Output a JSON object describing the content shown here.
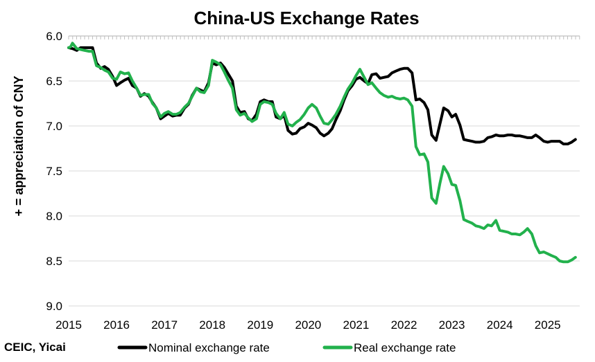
{
  "chart_data": {
    "type": "line",
    "title": "China-US Exchange Rates",
    "ylabel": "+ = appreciation of CNY",
    "xlabel": "",
    "source": "CEIC, Yicai",
    "y_inverted": true,
    "ylim": [
      6.0,
      9.0
    ],
    "xlim": [
      2015.0,
      2025.67
    ],
    "y_ticks": [
      "6.0",
      "6.5",
      "7.0",
      "7.5",
      "8.0",
      "8.5",
      "9.0"
    ],
    "x_ticks": [
      "2015",
      "2016",
      "2017",
      "2018",
      "2019",
      "2020",
      "2021",
      "2022",
      "2023",
      "2024",
      "2025"
    ],
    "grid": "horizontal",
    "legend_position": "bottom",
    "series": [
      {
        "name": "Nominal exchange rate",
        "color": "#000000",
        "points": [
          [
            2015.0,
            6.13
          ],
          [
            2015.08,
            6.14
          ],
          [
            2015.17,
            6.16
          ],
          [
            2015.25,
            6.13
          ],
          [
            2015.33,
            6.13
          ],
          [
            2015.42,
            6.13
          ],
          [
            2015.5,
            6.13
          ],
          [
            2015.58,
            6.3
          ],
          [
            2015.67,
            6.36
          ],
          [
            2015.75,
            6.34
          ],
          [
            2015.83,
            6.37
          ],
          [
            2015.92,
            6.45
          ],
          [
            2016.0,
            6.55
          ],
          [
            2016.08,
            6.52
          ],
          [
            2016.17,
            6.49
          ],
          [
            2016.25,
            6.47
          ],
          [
            2016.33,
            6.55
          ],
          [
            2016.42,
            6.58
          ],
          [
            2016.5,
            6.67
          ],
          [
            2016.58,
            6.64
          ],
          [
            2016.67,
            6.67
          ],
          [
            2016.75,
            6.74
          ],
          [
            2016.83,
            6.8
          ],
          [
            2016.92,
            6.92
          ],
          [
            2017.0,
            6.89
          ],
          [
            2017.08,
            6.86
          ],
          [
            2017.17,
            6.89
          ],
          [
            2017.25,
            6.88
          ],
          [
            2017.33,
            6.88
          ],
          [
            2017.42,
            6.8
          ],
          [
            2017.5,
            6.76
          ],
          [
            2017.58,
            6.66
          ],
          [
            2017.67,
            6.58
          ],
          [
            2017.75,
            6.6
          ],
          [
            2017.83,
            6.62
          ],
          [
            2017.92,
            6.52
          ],
          [
            2018.0,
            6.3
          ],
          [
            2018.08,
            6.32
          ],
          [
            2018.17,
            6.3
          ],
          [
            2018.25,
            6.35
          ],
          [
            2018.33,
            6.42
          ],
          [
            2018.42,
            6.5
          ],
          [
            2018.5,
            6.78
          ],
          [
            2018.58,
            6.85
          ],
          [
            2018.67,
            6.84
          ],
          [
            2018.75,
            6.92
          ],
          [
            2018.83,
            6.94
          ],
          [
            2018.92,
            6.87
          ],
          [
            2019.0,
            6.73
          ],
          [
            2019.08,
            6.71
          ],
          [
            2019.17,
            6.73
          ],
          [
            2019.25,
            6.73
          ],
          [
            2019.33,
            6.9
          ],
          [
            2019.42,
            6.92
          ],
          [
            2019.5,
            6.88
          ],
          [
            2019.58,
            7.05
          ],
          [
            2019.67,
            7.09
          ],
          [
            2019.75,
            7.08
          ],
          [
            2019.83,
            7.03
          ],
          [
            2019.92,
            7.01
          ],
          [
            2020.0,
            6.97
          ],
          [
            2020.08,
            6.99
          ],
          [
            2020.17,
            7.02
          ],
          [
            2020.25,
            7.08
          ],
          [
            2020.33,
            7.11
          ],
          [
            2020.42,
            7.08
          ],
          [
            2020.5,
            7.03
          ],
          [
            2020.58,
            6.93
          ],
          [
            2020.67,
            6.83
          ],
          [
            2020.75,
            6.71
          ],
          [
            2020.83,
            6.61
          ],
          [
            2020.92,
            6.55
          ],
          [
            2021.0,
            6.48
          ],
          [
            2021.08,
            6.46
          ],
          [
            2021.17,
            6.5
          ],
          [
            2021.25,
            6.53
          ],
          [
            2021.33,
            6.43
          ],
          [
            2021.42,
            6.42
          ],
          [
            2021.5,
            6.47
          ],
          [
            2021.58,
            6.46
          ],
          [
            2021.67,
            6.45
          ],
          [
            2021.75,
            6.41
          ],
          [
            2021.83,
            6.39
          ],
          [
            2021.92,
            6.37
          ],
          [
            2022.0,
            6.36
          ],
          [
            2022.08,
            6.36
          ],
          [
            2022.17,
            6.41
          ],
          [
            2022.25,
            6.71
          ],
          [
            2022.33,
            6.7
          ],
          [
            2022.42,
            6.74
          ],
          [
            2022.5,
            6.82
          ],
          [
            2022.58,
            7.1
          ],
          [
            2022.67,
            7.16
          ],
          [
            2022.75,
            6.98
          ],
          [
            2022.83,
            6.8
          ],
          [
            2022.92,
            6.83
          ],
          [
            2023.0,
            6.9
          ],
          [
            2023.08,
            6.87
          ],
          [
            2023.17,
            6.99
          ],
          [
            2023.25,
            7.15
          ],
          [
            2023.33,
            7.16
          ],
          [
            2023.42,
            7.17
          ],
          [
            2023.5,
            7.18
          ],
          [
            2023.58,
            7.18
          ],
          [
            2023.67,
            7.17
          ],
          [
            2023.75,
            7.13
          ],
          [
            2023.83,
            7.12
          ],
          [
            2023.92,
            7.1
          ],
          [
            2024.0,
            7.11
          ],
          [
            2024.08,
            7.11
          ],
          [
            2024.17,
            7.1
          ],
          [
            2024.25,
            7.1
          ],
          [
            2024.33,
            7.11
          ],
          [
            2024.42,
            7.11
          ],
          [
            2024.5,
            7.12
          ],
          [
            2024.58,
            7.13
          ],
          [
            2024.67,
            7.13
          ],
          [
            2024.75,
            7.1
          ],
          [
            2024.83,
            7.13
          ],
          [
            2024.92,
            7.17
          ],
          [
            2025.0,
            7.18
          ],
          [
            2025.08,
            7.17
          ],
          [
            2025.17,
            7.17
          ],
          [
            2025.25,
            7.17
          ],
          [
            2025.33,
            7.2
          ],
          [
            2025.42,
            7.2
          ],
          [
            2025.5,
            7.18
          ],
          [
            2025.58,
            7.15
          ]
        ]
      },
      {
        "name": "Real exchange rate",
        "color": "#22b14c",
        "points": [
          [
            2015.0,
            6.13
          ],
          [
            2015.04,
            6.12
          ],
          [
            2015.08,
            6.08
          ],
          [
            2015.17,
            6.14
          ],
          [
            2015.25,
            6.15
          ],
          [
            2015.33,
            6.16
          ],
          [
            2015.42,
            6.17
          ],
          [
            2015.5,
            6.17
          ],
          [
            2015.58,
            6.33
          ],
          [
            2015.67,
            6.35
          ],
          [
            2015.75,
            6.38
          ],
          [
            2015.83,
            6.4
          ],
          [
            2015.92,
            6.47
          ],
          [
            2016.0,
            6.48
          ],
          [
            2016.08,
            6.4
          ],
          [
            2016.17,
            6.42
          ],
          [
            2016.25,
            6.41
          ],
          [
            2016.33,
            6.5
          ],
          [
            2016.42,
            6.58
          ],
          [
            2016.5,
            6.66
          ],
          [
            2016.58,
            6.65
          ],
          [
            2016.67,
            6.65
          ],
          [
            2016.75,
            6.75
          ],
          [
            2016.83,
            6.8
          ],
          [
            2016.92,
            6.9
          ],
          [
            2017.0,
            6.86
          ],
          [
            2017.08,
            6.84
          ],
          [
            2017.17,
            6.87
          ],
          [
            2017.25,
            6.87
          ],
          [
            2017.33,
            6.85
          ],
          [
            2017.42,
            6.79
          ],
          [
            2017.5,
            6.75
          ],
          [
            2017.58,
            6.67
          ],
          [
            2017.67,
            6.58
          ],
          [
            2017.75,
            6.62
          ],
          [
            2017.83,
            6.63
          ],
          [
            2017.92,
            6.55
          ],
          [
            2018.0,
            6.27
          ],
          [
            2018.08,
            6.29
          ],
          [
            2018.17,
            6.32
          ],
          [
            2018.25,
            6.4
          ],
          [
            2018.33,
            6.49
          ],
          [
            2018.42,
            6.58
          ],
          [
            2018.5,
            6.82
          ],
          [
            2018.58,
            6.88
          ],
          [
            2018.67,
            6.86
          ],
          [
            2018.75,
            6.91
          ],
          [
            2018.83,
            6.95
          ],
          [
            2018.92,
            6.92
          ],
          [
            2019.0,
            6.76
          ],
          [
            2019.08,
            6.73
          ],
          [
            2019.17,
            6.74
          ],
          [
            2019.25,
            6.76
          ],
          [
            2019.33,
            6.86
          ],
          [
            2019.42,
            6.92
          ],
          [
            2019.5,
            6.85
          ],
          [
            2019.58,
            6.98
          ],
          [
            2019.67,
            7.0
          ],
          [
            2019.75,
            6.96
          ],
          [
            2019.83,
            6.93
          ],
          [
            2019.92,
            6.87
          ],
          [
            2020.0,
            6.8
          ],
          [
            2020.08,
            6.76
          ],
          [
            2020.17,
            6.8
          ],
          [
            2020.25,
            6.89
          ],
          [
            2020.33,
            6.97
          ],
          [
            2020.42,
            6.98
          ],
          [
            2020.5,
            6.93
          ],
          [
            2020.58,
            6.87
          ],
          [
            2020.67,
            6.78
          ],
          [
            2020.75,
            6.68
          ],
          [
            2020.83,
            6.59
          ],
          [
            2020.92,
            6.52
          ],
          [
            2021.0,
            6.44
          ],
          [
            2021.08,
            6.37
          ],
          [
            2021.17,
            6.46
          ],
          [
            2021.25,
            6.54
          ],
          [
            2021.33,
            6.52
          ],
          [
            2021.42,
            6.58
          ],
          [
            2021.5,
            6.63
          ],
          [
            2021.58,
            6.66
          ],
          [
            2021.67,
            6.68
          ],
          [
            2021.75,
            6.67
          ],
          [
            2021.83,
            6.69
          ],
          [
            2021.92,
            6.7
          ],
          [
            2022.0,
            6.69
          ],
          [
            2022.08,
            6.71
          ],
          [
            2022.17,
            6.78
          ],
          [
            2022.25,
            7.23
          ],
          [
            2022.33,
            7.32
          ],
          [
            2022.42,
            7.31
          ],
          [
            2022.5,
            7.4
          ],
          [
            2022.58,
            7.8
          ],
          [
            2022.67,
            7.86
          ],
          [
            2022.75,
            7.64
          ],
          [
            2022.83,
            7.45
          ],
          [
            2022.92,
            7.53
          ],
          [
            2023.0,
            7.65
          ],
          [
            2023.08,
            7.66
          ],
          [
            2023.17,
            7.83
          ],
          [
            2023.25,
            8.04
          ],
          [
            2023.33,
            8.06
          ],
          [
            2023.42,
            8.08
          ],
          [
            2023.5,
            8.11
          ],
          [
            2023.58,
            8.12
          ],
          [
            2023.67,
            8.14
          ],
          [
            2023.75,
            8.1
          ],
          [
            2023.83,
            8.11
          ],
          [
            2023.92,
            8.05
          ],
          [
            2024.0,
            8.16
          ],
          [
            2024.08,
            8.17
          ],
          [
            2024.17,
            8.18
          ],
          [
            2024.25,
            8.2
          ],
          [
            2024.33,
            8.2
          ],
          [
            2024.42,
            8.21
          ],
          [
            2024.5,
            8.18
          ],
          [
            2024.58,
            8.14
          ],
          [
            2024.67,
            8.2
          ],
          [
            2024.75,
            8.33
          ],
          [
            2024.83,
            8.41
          ],
          [
            2024.92,
            8.4
          ],
          [
            2025.0,
            8.42
          ],
          [
            2025.08,
            8.44
          ],
          [
            2025.17,
            8.46
          ],
          [
            2025.25,
            8.5
          ],
          [
            2025.33,
            8.51
          ],
          [
            2025.42,
            8.51
          ],
          [
            2025.5,
            8.49
          ],
          [
            2025.58,
            8.46
          ]
        ]
      }
    ]
  }
}
